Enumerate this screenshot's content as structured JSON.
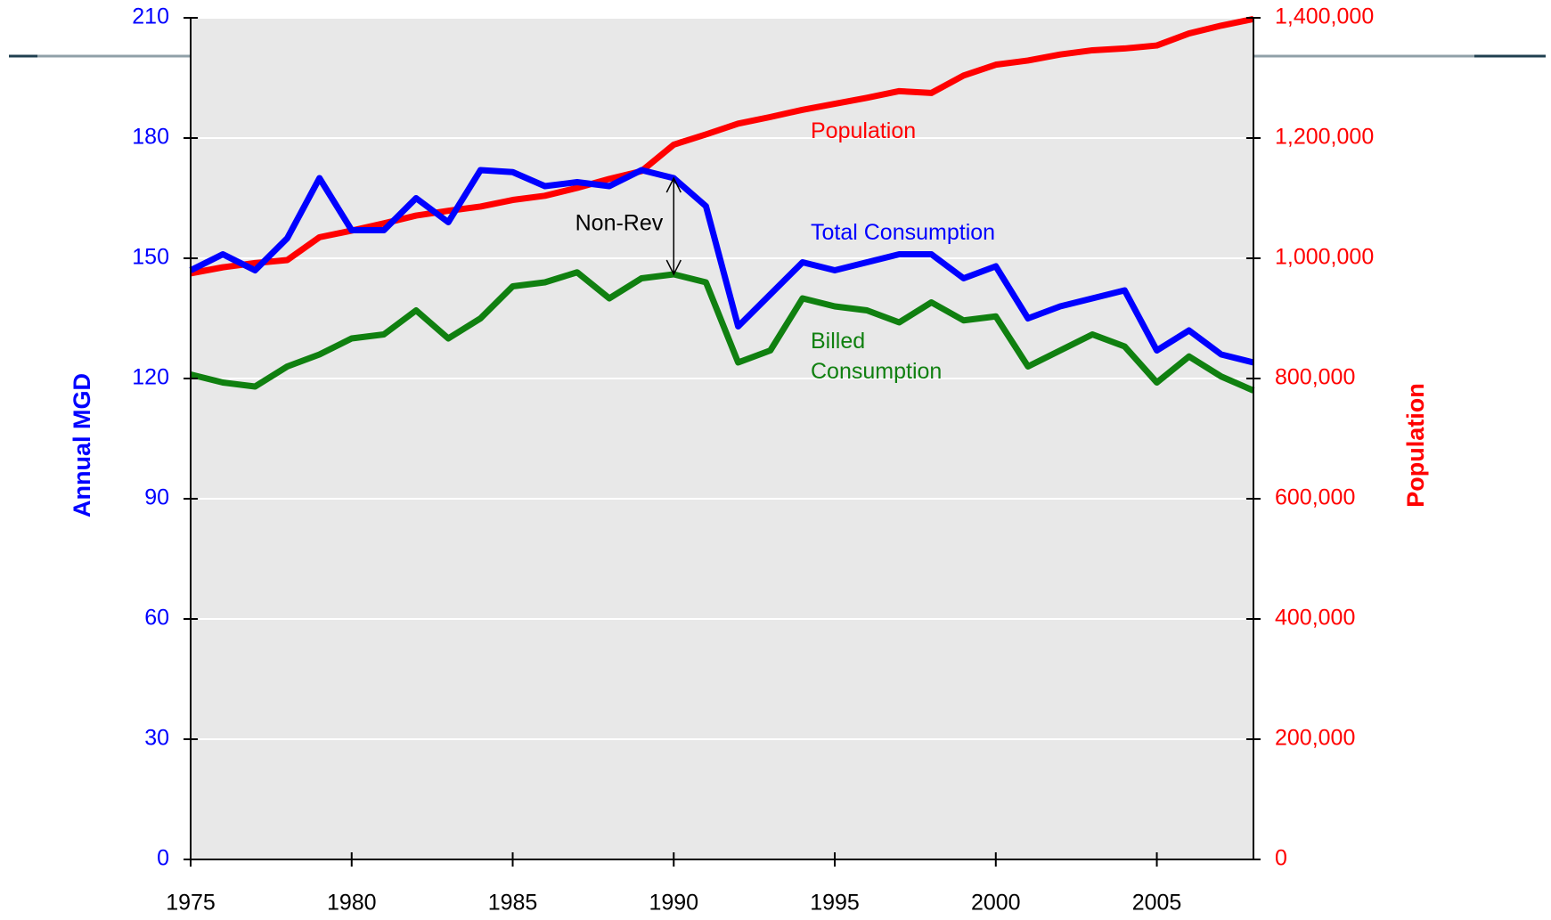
{
  "chart_data": {
    "type": "line",
    "y_label": "Annual MGD",
    "y2_label": "Population",
    "annotation": "Non-Rev",
    "annotation_x": 1990,
    "x": [
      1975,
      1976,
      1977,
      1978,
      1979,
      1980,
      1981,
      1982,
      1983,
      1984,
      1985,
      1986,
      1987,
      1988,
      1989,
      1990,
      1991,
      1992,
      1993,
      1994,
      1995,
      1996,
      1997,
      1998,
      1999,
      2000,
      2001,
      2002,
      2003,
      2004,
      2005,
      2006,
      2007,
      2008
    ],
    "xlim": [
      1975,
      2008
    ],
    "xticks": [
      1975,
      1980,
      1985,
      1990,
      1995,
      2000,
      2005
    ],
    "ylim": [
      0,
      210
    ],
    "yticks": [
      0,
      30,
      60,
      90,
      120,
      150,
      180,
      210
    ],
    "y2lim": [
      0,
      1400000
    ],
    "y2ticks": [
      0,
      {
        "value": 200000,
        "label": "200,000"
      },
      {
        "value": 400000,
        "label": "400,000"
      },
      {
        "value": 600000,
        "label": "600,000"
      },
      {
        "value": 800000,
        "label": "800,000"
      },
      {
        "value": 1000000,
        "label": "1,000,000"
      },
      {
        "value": 1200000,
        "label": "1,200,000"
      },
      {
        "value": 1400000,
        "label": "1,400,000"
      }
    ],
    "grid": true,
    "y_color": "#0000ff",
    "y2_color": "#ff0000",
    "series": [
      {
        "name": "Population",
        "color": "#ff0000",
        "axis": "y2",
        "values": [
          975000,
          985000,
          992000,
          997000,
          1035000,
          1046000,
          1058000,
          1071000,
          1079000,
          1086000,
          1097000,
          1104000,
          1117000,
          1132000,
          1145000,
          1189000,
          1206000,
          1224000,
          1235000,
          1247000,
          1257000,
          1267000,
          1278000,
          1275000,
          1304000,
          1322000,
          1329000,
          1339000,
          1346000,
          1349000,
          1354000,
          1374000,
          1387000,
          1398000
        ]
      },
      {
        "name": "Total Consumption",
        "color": "#0000ff",
        "values": [
          147,
          151,
          147,
          155,
          170,
          157,
          157,
          165,
          159,
          172,
          171.5,
          168,
          169,
          168,
          172,
          170,
          163,
          133,
          141,
          149,
          147,
          149,
          151,
          151,
          145,
          148,
          135,
          138,
          140,
          142,
          127,
          132,
          126,
          124
        ]
      },
      {
        "name": "Billed Consumption",
        "color": "#108010",
        "values": [
          121,
          119,
          118,
          123,
          126,
          130,
          131,
          137,
          130,
          135,
          143,
          144,
          146.5,
          140,
          145,
          146,
          144,
          124,
          127,
          140,
          138,
          137,
          134,
          139,
          134.5,
          135.5,
          123,
          127,
          131,
          128,
          119,
          125.5,
          120.5,
          117
        ]
      }
    ]
  }
}
